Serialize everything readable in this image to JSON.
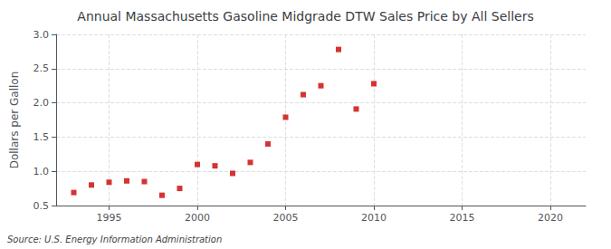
{
  "chart_data": {
    "type": "scatter",
    "title": "Annual Massachusetts Gasoline Midgrade DTW Sales Price by All Sellers",
    "y_label": "Dollars per Gallon",
    "source": "Source: U.S. Energy Information Administration",
    "x": [
      1993,
      1994,
      1995,
      1996,
      1997,
      1998,
      1999,
      2000,
      2001,
      2002,
      2003,
      2004,
      2005,
      2006,
      2007,
      2008,
      2009,
      2010
    ],
    "values": [
      0.69,
      0.8,
      0.84,
      0.86,
      0.85,
      0.65,
      0.75,
      1.1,
      1.08,
      0.97,
      1.13,
      1.4,
      1.79,
      2.12,
      2.25,
      2.78,
      1.91,
      2.28
    ],
    "color": "#cc0000",
    "marker": "square",
    "xlim": [
      1992,
      2022
    ],
    "xticks": [
      1995,
      2000,
      2005,
      2010,
      2015,
      2020
    ],
    "ylim": [
      0.5,
      3.0
    ],
    "yticks": [
      0.5,
      {
        "value": 1.0,
        "label": "1.0"
      },
      1.5,
      {
        "value": 2.0,
        "label": "2.0"
      },
      2.5,
      {
        "value": 3.0,
        "label": "3.0"
      }
    ],
    "grid": true
  }
}
